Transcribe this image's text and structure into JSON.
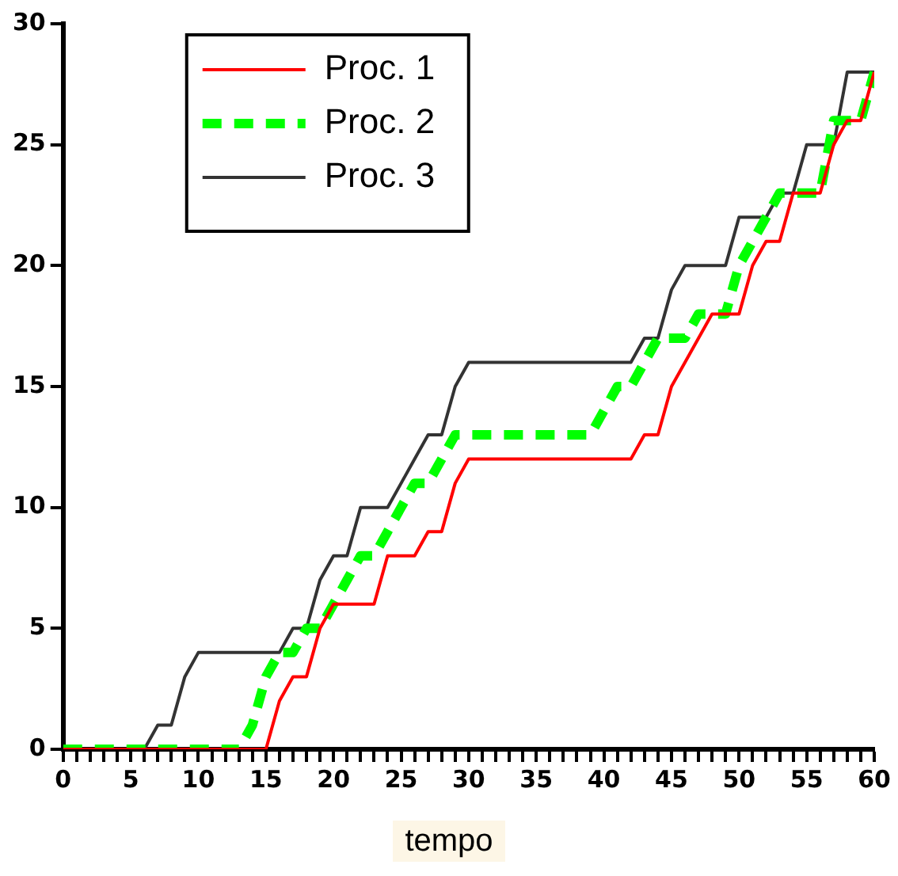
{
  "chart_data": {
    "type": "line",
    "xlabel": "tempo",
    "x": [
      0,
      1,
      2,
      3,
      4,
      5,
      6,
      7,
      8,
      9,
      10,
      11,
      12,
      13,
      14,
      15,
      16,
      17,
      18,
      19,
      20,
      21,
      22,
      23,
      24,
      25,
      26,
      27,
      28,
      29,
      30,
      31,
      32,
      33,
      34,
      35,
      36,
      37,
      38,
      39,
      40,
      41,
      42,
      43,
      44,
      45,
      46,
      47,
      48,
      49,
      50,
      51,
      52,
      53,
      54,
      55,
      56,
      57,
      58,
      59,
      60
    ],
    "series": [
      {
        "name": "Proc. 1",
        "color": "#ff0000",
        "line_style": "solid",
        "values": [
          0,
          0,
          0,
          0,
          0,
          0,
          0,
          0,
          0,
          0,
          0,
          0,
          0,
          0,
          0,
          0,
          2,
          3,
          3,
          5,
          6,
          6,
          6,
          6,
          8,
          8,
          8,
          9,
          9,
          11,
          12,
          12,
          12,
          12,
          12,
          12,
          12,
          12,
          12,
          12,
          12,
          12,
          12,
          13,
          13,
          15,
          16,
          17,
          18,
          18,
          18,
          20,
          21,
          21,
          23,
          23,
          23,
          25,
          26,
          26,
          28
        ]
      },
      {
        "name": "Proc. 2",
        "color": "#00ff00",
        "line_style": "dashed",
        "values": [
          0,
          0,
          0,
          0,
          0,
          0,
          0,
          0,
          0,
          0,
          0,
          0,
          0,
          0,
          1,
          3,
          4,
          4,
          5,
          5,
          6,
          7,
          8,
          8,
          9,
          10,
          11,
          11,
          12,
          13,
          13,
          13,
          13,
          13,
          13,
          13,
          13,
          13,
          13,
          13,
          14,
          15,
          15,
          16,
          17,
          17,
          17,
          18,
          18,
          18,
          20,
          21,
          22,
          23,
          23,
          23,
          23,
          26,
          26,
          26,
          28
        ]
      },
      {
        "name": "Proc. 3",
        "color": "#333333",
        "line_style": "solid",
        "values": [
          0,
          0,
          0,
          0,
          0,
          0,
          0,
          1,
          1,
          3,
          4,
          4,
          4,
          4,
          4,
          4,
          4,
          5,
          5,
          7,
          8,
          8,
          10,
          10,
          10,
          11,
          12,
          13,
          13,
          15,
          16,
          16,
          16,
          16,
          16,
          16,
          16,
          16,
          16,
          16,
          16,
          16,
          16,
          17,
          17,
          19,
          20,
          20,
          20,
          20,
          22,
          22,
          22,
          23,
          23,
          25,
          25,
          25,
          28,
          28,
          28
        ]
      }
    ],
    "xlim": [
      0,
      60
    ],
    "xticks": [
      0,
      {
        "value": 1,
        "label": null
      },
      {
        "value": 2,
        "label": null
      },
      {
        "value": 3,
        "label": null
      },
      {
        "value": 4,
        "label": null
      },
      5,
      {
        "value": 6,
        "label": null
      },
      {
        "value": 7,
        "label": null
      },
      {
        "value": 8,
        "label": null
      },
      {
        "value": 9,
        "label": null
      },
      10,
      {
        "value": 11,
        "label": null
      },
      {
        "value": 12,
        "label": null
      },
      {
        "value": 13,
        "label": null
      },
      {
        "value": 14,
        "label": null
      },
      15,
      {
        "value": 16,
        "label": null
      },
      {
        "value": 17,
        "label": null
      },
      {
        "value": 18,
        "label": null
      },
      {
        "value": 19,
        "label": null
      },
      20,
      {
        "value": 21,
        "label": null
      },
      {
        "value": 22,
        "label": null
      },
      {
        "value": 23,
        "label": null
      },
      {
        "value": 24,
        "label": null
      },
      25,
      {
        "value": 26,
        "label": null
      },
      {
        "value": 27,
        "label": null
      },
      {
        "value": 28,
        "label": null
      },
      {
        "value": 29,
        "label": null
      },
      30,
      {
        "value": 31,
        "label": null
      },
      {
        "value": 32,
        "label": null
      },
      {
        "value": 33,
        "label": null
      },
      {
        "value": 34,
        "label": null
      },
      35,
      {
        "value": 36,
        "label": null
      },
      {
        "value": 37,
        "label": null
      },
      {
        "value": 38,
        "label": null
      },
      {
        "value": 39,
        "label": null
      },
      40,
      {
        "value": 41,
        "label": null
      },
      {
        "value": 42,
        "label": null
      },
      {
        "value": 43,
        "label": null
      },
      {
        "value": 44,
        "label": null
      },
      45,
      {
        "value": 46,
        "label": null
      },
      {
        "value": 47,
        "label": null
      },
      {
        "value": 48,
        "label": null
      },
      {
        "value": 49,
        "label": null
      },
      50,
      {
        "value": 51,
        "label": null
      },
      {
        "value": 52,
        "label": null
      },
      {
        "value": 53,
        "label": null
      },
      {
        "value": 54,
        "label": null
      },
      55,
      {
        "value": 56,
        "label": null
      },
      {
        "value": 57,
        "label": null
      },
      {
        "value": 58,
        "label": null
      },
      {
        "value": 59,
        "label": null
      },
      60
    ],
    "ylim": [
      0,
      30
    ],
    "yticks": [
      0,
      5,
      10,
      15,
      20,
      25,
      30
    ],
    "grid": false,
    "legend": "top left",
    "marker": "none"
  }
}
